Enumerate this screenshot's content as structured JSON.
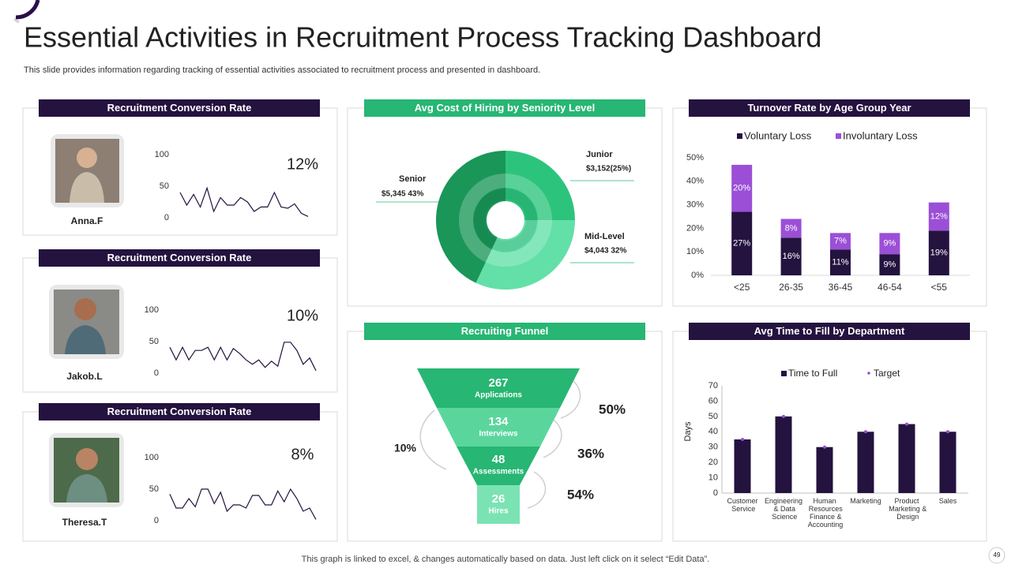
{
  "title": "Essential Activities in Recruitment Process Tracking Dashboard",
  "subtitle": "This slide provides information regarding tracking of essential activities associated to recruitment process and presented in dashboard.",
  "footer": "This graph is linked to excel, & changes automatically based on data. Just left click on it select “Edit Data”.",
  "page_number": 49,
  "chart_data": [
    {
      "type": "line",
      "title": "Recruitment Conversion Rate",
      "name": "Anna.F",
      "rate": 12,
      "rate_label": "12%",
      "color": "#24123f",
      "ylim": [
        0,
        100
      ],
      "yticks": [
        0,
        50,
        100
      ],
      "values": [
        40,
        20,
        37,
        17,
        47,
        10,
        32,
        20,
        20,
        32,
        25,
        10,
        17,
        17,
        40,
        17,
        15,
        22,
        7,
        2
      ]
    },
    {
      "type": "line",
      "title": "Recruitment Conversion Rate",
      "name": "Jakob.L",
      "rate": 10,
      "rate_label": "10%",
      "color": "#24123f",
      "ylim": [
        0,
        100
      ],
      "yticks": [
        0,
        50,
        100
      ],
      "values": [
        41,
        21,
        41,
        21,
        36,
        36,
        41,
        21,
        41,
        21,
        39,
        31,
        21,
        14,
        21,
        9,
        19,
        11,
        49,
        49,
        36,
        14,
        24,
        4
      ]
    },
    {
      "type": "line",
      "title": "Recruitment Conversion Rate",
      "name": "Theresa.T",
      "rate": 8,
      "rate_label": "8%",
      "color": "#24123f",
      "ylim": [
        0,
        100
      ],
      "yticks": [
        0,
        50,
        100
      ],
      "values": [
        42,
        20,
        20,
        35,
        22,
        50,
        50,
        27,
        45,
        15,
        25,
        25,
        20,
        40,
        40,
        25,
        25,
        47,
        30,
        50,
        35,
        15,
        20,
        2
      ]
    },
    {
      "type": "pie",
      "title": "Avg Cost of Hiring by Seniority Level",
      "categories": [
        "Junior",
        "Mid-Level",
        "Senior"
      ],
      "values": [
        25,
        32,
        43
      ],
      "value_labels": [
        "$3,152(25%)",
        "$4,043 32%",
        "$5,345 43%"
      ],
      "colors": [
        "#2cc47c",
        "#62e0a8",
        "#1a9659"
      ]
    },
    {
      "type": "stacked_bar",
      "title": "Turnover Rate by Age Group Year",
      "categories": [
        "<25",
        "26-35",
        "36-45",
        "46-54",
        "<55"
      ],
      "series": [
        {
          "name": "Voluntary Loss",
          "color": "#24123f",
          "values": [
            27,
            16,
            11,
            9,
            19
          ],
          "value_labels": [
            "27%",
            "16%",
            "11%",
            "9%",
            "19%"
          ]
        },
        {
          "name": "Involuntary Loss",
          "color": "#9b4fd6",
          "values": [
            20,
            8,
            7,
            9,
            12
          ],
          "value_labels": [
            "20%",
            "8%",
            "7%",
            "9%",
            "12%"
          ]
        }
      ],
      "ylim": [
        0,
        50
      ],
      "yticks": [
        {
          "value": 0,
          "label": "0%"
        },
        {
          "value": 10,
          "label": "10%"
        },
        {
          "value": 20,
          "label": "20%"
        },
        {
          "value": 30,
          "label": "30%"
        },
        {
          "value": 40,
          "label": "40%"
        },
        {
          "value": 50,
          "label": "50%"
        }
      ],
      "legend": "top"
    },
    {
      "type": "funnel",
      "title": "Recruiting Funnel",
      "categories": [
        "Applications",
        "Interviews",
        "Assessments",
        "Hires"
      ],
      "values": [
        267,
        134,
        48,
        26
      ],
      "conversion_rates": [
        50,
        36,
        54
      ],
      "conversion_labels": [
        "50%",
        "36%",
        "54%"
      ],
      "overall_rate": 10,
      "overall_label": "10%",
      "colors": [
        "#27b673",
        "#5ad69c",
        "#27b673",
        "#7be3b3"
      ]
    },
    {
      "type": "bar_target",
      "title": "Avg Time to Fill by Department",
      "ylabel": "Days",
      "categories": [
        "Customer Service",
        "Engineering & Data Science",
        "Human Resources Finance & Accounting",
        "Marketing",
        "Product Marketing & Design",
        "Sales"
      ],
      "series": [
        {
          "name": "Time to Full",
          "color": "#24123f",
          "values": [
            35,
            50,
            30,
            40,
            45,
            40
          ]
        },
        {
          "name": "Target",
          "color": "#9b4fd6",
          "values": [
            35,
            50,
            30,
            40,
            45,
            40
          ]
        }
      ],
      "ylim": [
        0,
        70
      ],
      "yticks": [
        0,
        10,
        20,
        30,
        40,
        50,
        60,
        70
      ],
      "legend": "top"
    }
  ]
}
